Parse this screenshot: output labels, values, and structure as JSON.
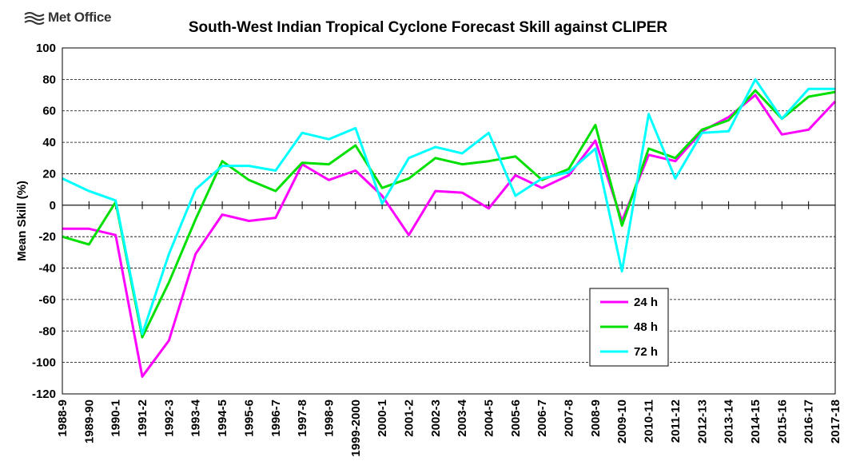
{
  "logo": {
    "text": "Met Office",
    "icon": "met-office-logo-icon"
  },
  "chart_data": {
    "type": "line",
    "title": "South-West Indian Tropical Cyclone Forecast Skill against CLIPER",
    "xlabel": "",
    "ylabel": "Mean Skill (%)",
    "ylim": [
      -120,
      100
    ],
    "yticks": [
      100,
      80,
      60,
      40,
      20,
      0,
      -20,
      -40,
      -60,
      -80,
      -100,
      -120
    ],
    "grid": "horizontal dashed",
    "legend_position": "bottom-right",
    "categories": [
      "1988-9",
      "1989-90",
      "1990-1",
      "1991-2",
      "1992-3",
      "1993-4",
      "1994-5",
      "1995-6",
      "1996-7",
      "1997-8",
      "1998-9",
      "1999-2000",
      "2000-1",
      "2001-2",
      "2002-3",
      "2003-4",
      "2004-5",
      "2005-6",
      "2006-7",
      "2007-8",
      "2008-9",
      "2009-10",
      "2010-11",
      "2011-12",
      "2012-13",
      "2013-14",
      "2014-15",
      "2015-16",
      "2016-17",
      "2017-18"
    ],
    "series": [
      {
        "name": "24 h",
        "color": "#ff00ff",
        "values": [
          -15,
          -15,
          -19,
          -109,
          -86,
          -31,
          -6,
          -10,
          -8,
          26,
          16,
          22,
          6,
          -19,
          9,
          8,
          -2,
          19,
          11,
          19,
          41,
          -10,
          32,
          28,
          47,
          56,
          70,
          45,
          48,
          66
        ]
      },
      {
        "name": "48 h",
        "color": "#00e000",
        "values": [
          -20,
          -25,
          2,
          -84,
          -49,
          -9,
          28,
          16,
          9,
          27,
          26,
          38,
          11,
          17,
          30,
          26,
          28,
          31,
          16,
          23,
          51,
          -13,
          36,
          30,
          48,
          54,
          73,
          55,
          69,
          72
        ]
      },
      {
        "name": "72 h",
        "color": "#00ffff",
        "values": [
          17,
          9,
          3,
          -82,
          -31,
          10,
          25,
          25,
          22,
          46,
          42,
          49,
          1,
          30,
          37,
          33,
          46,
          6,
          17,
          21,
          36,
          -42,
          58,
          17,
          46,
          47,
          80,
          55,
          74,
          74
        ]
      }
    ]
  }
}
